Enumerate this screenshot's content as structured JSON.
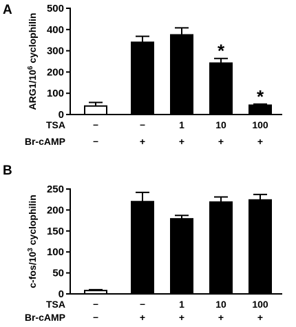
{
  "chart_data": [
    {
      "panel": "A",
      "type": "bar",
      "ylabel": "ARG1/10^6 cyclophilin",
      "ylim": [
        0,
        500
      ],
      "yticks": [
        0,
        100,
        200,
        300,
        400,
        500
      ],
      "categories": [
        "1",
        "2",
        "3",
        "4",
        "5"
      ],
      "values": [
        40,
        340,
        375,
        242,
        44
      ],
      "errors": [
        17,
        28,
        33,
        22,
        5
      ],
      "bar_fill": [
        "#ffffff",
        "#000000",
        "#000000",
        "#000000",
        "#000000"
      ],
      "significant": [
        false,
        false,
        false,
        true,
        true
      ],
      "star_symbol": "*",
      "conditions": [
        {
          "name": "TSA",
          "values": [
            "–",
            "–",
            "1",
            "10",
            "100"
          ]
        },
        {
          "name": "Br-cAMP",
          "values": [
            "–",
            "+",
            "+",
            "+",
            "+"
          ]
        }
      ]
    },
    {
      "panel": "B",
      "type": "bar",
      "ylabel": "c-fos/10^3 cyclophilin",
      "ylim": [
        0,
        250
      ],
      "yticks": [
        0,
        50,
        100,
        150,
        200,
        250
      ],
      "categories": [
        "1",
        "2",
        "3",
        "4",
        "5"
      ],
      "values": [
        8,
        220,
        179,
        219,
        224
      ],
      "errors": [
        2,
        22,
        8,
        12,
        13
      ],
      "bar_fill": [
        "#ffffff",
        "#000000",
        "#000000",
        "#000000",
        "#000000"
      ],
      "significant": [
        false,
        false,
        false,
        false,
        false
      ],
      "star_symbol": "*",
      "conditions": [
        {
          "name": "TSA",
          "values": [
            "–",
            "–",
            "1",
            "10",
            "100"
          ]
        },
        {
          "name": "Br-cAMP",
          "values": [
            "–",
            "+",
            "+",
            "+",
            "+"
          ]
        }
      ]
    }
  ]
}
